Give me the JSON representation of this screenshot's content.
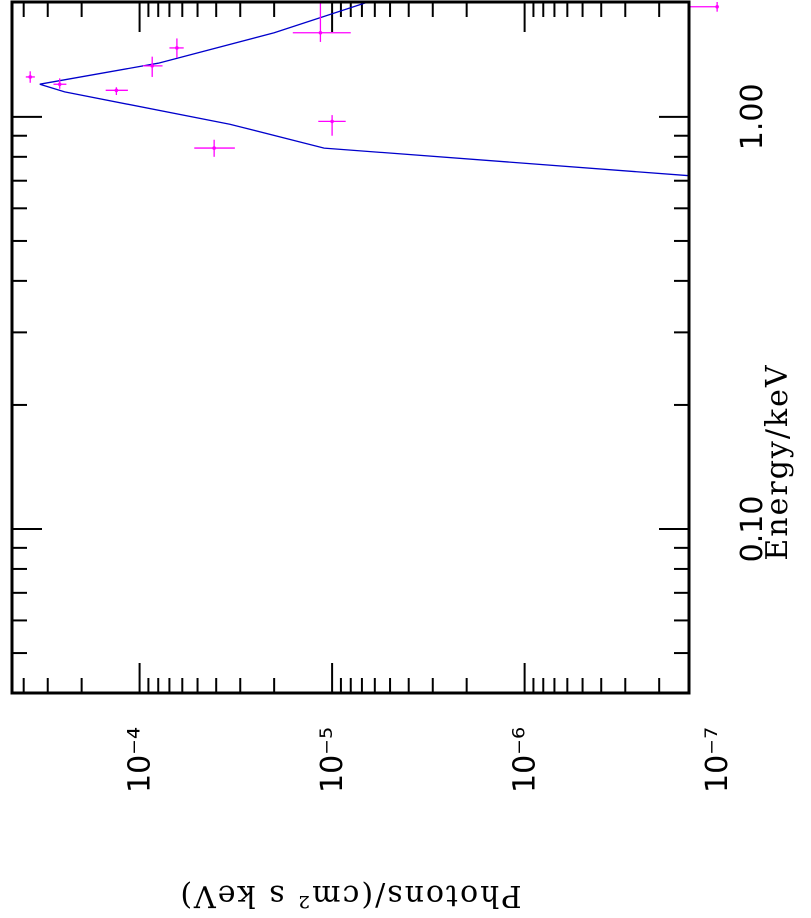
{
  "chart_data": {
    "type": "scatter",
    "xlabel": "Energy/keV",
    "ylabel": "Photons/(cm² s keV)",
    "x_scale": "log",
    "y_scale": "log",
    "xlim": [
      0.04,
      1.9
    ],
    "ylim": [
      1.4e-07,
      0.00046
    ],
    "x_ticks": [
      {
        "value": 0.1,
        "label": "0.10"
      },
      {
        "value": 1.0,
        "label": "1.00"
      }
    ],
    "y_ticks": [
      {
        "value": 0.0001,
        "label": "10⁻⁴"
      },
      {
        "value": 1e-05,
        "label": "10⁻⁵"
      },
      {
        "value": 1e-06,
        "label": "10⁻⁶"
      },
      {
        "value": 1e-07,
        "label": "10⁻⁷"
      }
    ],
    "colors": {
      "data": "#ff00ff",
      "model": "#0000cc",
      "frame": "#000000"
    },
    "series": [
      {
        "kind": "data_points_with_error_bars",
        "points": [
          {
            "x": 1.25,
            "y": 0.00037,
            "x_err": [
              1.21,
              1.29
            ],
            "y_err": [
              0.00035,
              0.00039
            ]
          },
          {
            "x": 1.2,
            "y": 0.00026,
            "x_err": [
              1.17,
              1.24
            ],
            "y_err": [
              0.00024,
              0.00028
            ]
          },
          {
            "x": 1.16,
            "y": 0.000132,
            "x_err": [
              1.13,
              1.18
            ],
            "y_err": [
              0.000115,
              0.00015
            ]
          },
          {
            "x": 1.33,
            "y": 8.6e-05,
            "x_err": [
              1.25,
              1.4
            ],
            "y_err": [
              7.6e-05,
              9.6e-05
            ]
          },
          {
            "x": 1.47,
            "y": 6.4e-05,
            "x_err": [
              1.39,
              1.55
            ],
            "y_err": [
              5.9e-05,
              7e-05
            ]
          },
          {
            "x": 1.6,
            "y": 1.15e-05,
            "x_err": [
              1.52,
              1.9
            ],
            "y_err": [
              8e-06,
              1.6e-05
            ]
          },
          {
            "x": 1.85,
            "y": 1e-07,
            "x_err": [
              1.8,
              1.9
            ],
            "y_err": null
          },
          {
            "x": 0.84,
            "y": 4.1e-05,
            "x_err": [
              0.8,
              0.88
            ],
            "y_err": [
              3.2e-05,
              5.2e-05
            ]
          },
          {
            "x": 0.975,
            "y": 1e-05,
            "x_err": [
              0.9,
              1.01
            ],
            "y_err": [
              8.5e-06,
              1.18e-05
            ]
          }
        ]
      },
      {
        "kind": "model_line",
        "points": [
          {
            "x": 0.72,
            "y": 1.4e-07
          },
          {
            "x": 0.84,
            "y": 1.1e-05
          },
          {
            "x": 0.96,
            "y": 3.4e-05
          },
          {
            "x": 1.15,
            "y": 0.000245
          },
          {
            "x": 1.2,
            "y": 0.00033
          },
          {
            "x": 1.35,
            "y": 8e-05
          },
          {
            "x": 1.6,
            "y": 2e-05
          },
          {
            "x": 1.9,
            "y": 6.5e-06
          }
        ]
      }
    ],
    "grid": false
  }
}
